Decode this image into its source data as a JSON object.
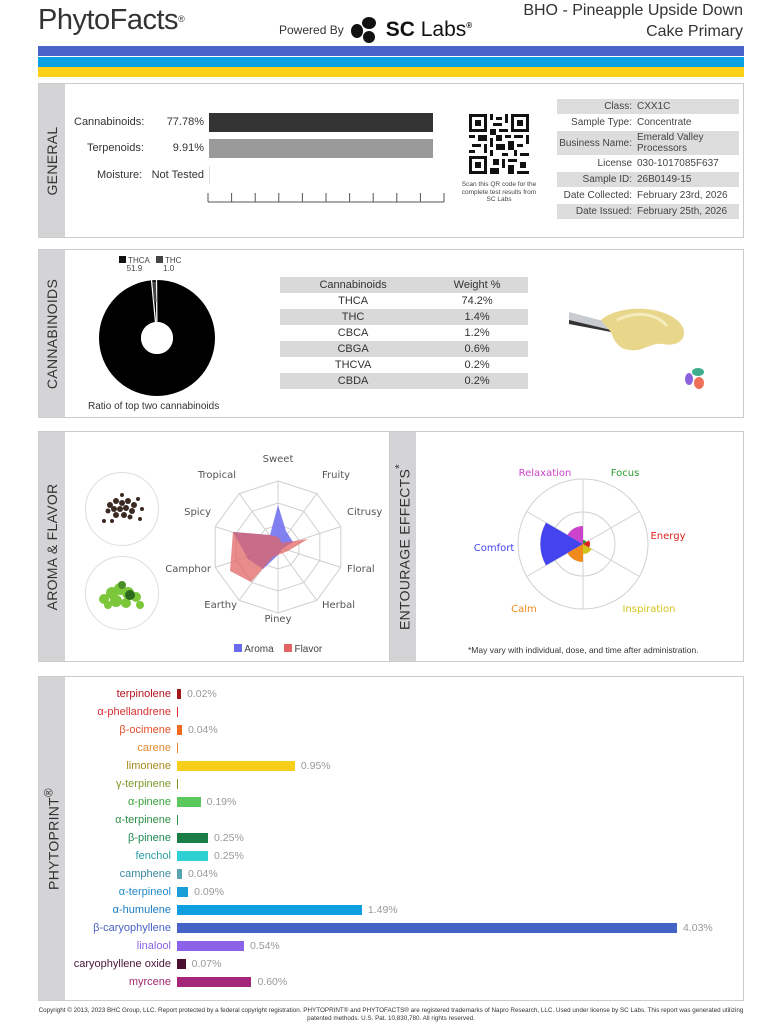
{
  "header": {
    "logo": "PhytoFacts",
    "logo_mark": "®",
    "powered_by": "Powered By",
    "partner_bold": "SC",
    "partner_rest": "Labs",
    "partner_mark": "®",
    "product_title_line1": "BHO - Pineapple Upside Down",
    "product_title_line2": "Cake Primary",
    "stripe_colors": [
      "#4a63c9",
      "#0aa0e3",
      "#fcd116"
    ]
  },
  "general": {
    "section_label": "GENERAL",
    "rows": [
      {
        "label": "Cannabinoids:",
        "value": "77.78%",
        "bar_pct": 100,
        "color": "#333333"
      },
      {
        "label": "Terpenoids:",
        "value": "9.91%",
        "bar_pct": 100,
        "color": "#9a9a9a"
      },
      {
        "label": "Moisture:",
        "value": "Not Tested",
        "bar_pct": 0,
        "color": "#cccccc"
      }
    ],
    "qr_caption": "Scan this QR code for the complete test results from SC Labs",
    "meta": [
      {
        "key": "Class:",
        "value": "CXX1C"
      },
      {
        "key": "Sample Type:",
        "value": "Concentrate"
      },
      {
        "key": "Business Name:",
        "value": "Emerald Valley Processors"
      },
      {
        "key": "License Number:",
        "value": "030-1017085F637"
      },
      {
        "key": "Sample ID:",
        "value": "26B0149-15"
      },
      {
        "key": "Date Collected:",
        "value": "February 23rd, 2026"
      },
      {
        "key": "Date Issued:",
        "value": "February 25th, 2026"
      }
    ]
  },
  "cannabinoids": {
    "section_label": "CANNABINOIDS",
    "donut_legend": [
      {
        "name": "THCA",
        "value": "51.9"
      },
      {
        "name": "THC",
        "value": "1.0"
      }
    ],
    "donut_caption": "Ratio of top two cannabinoids",
    "table_headers": [
      "Cannabinoids",
      "Weight %"
    ],
    "table_rows": [
      [
        "THCA",
        "74.2%"
      ],
      [
        "THC",
        "1.4%"
      ],
      [
        "CBCA",
        "1.2%"
      ],
      [
        "CBGA",
        "0.6%"
      ],
      [
        "THCVA",
        "0.2%"
      ],
      [
        "CBDA",
        "0.2%"
      ]
    ]
  },
  "aroma": {
    "section_label": "AROMA & FLAVOR",
    "axes": [
      "Sweet",
      "Fruity",
      "Citrusy",
      "Floral",
      "Herbal",
      "Piney",
      "Earthy",
      "Camphor",
      "Spicy",
      "Tropical"
    ],
    "legend": [
      {
        "name": "Aroma",
        "color": "#6b6bee"
      },
      {
        "name": "Flavor",
        "color": "#e06666"
      }
    ]
  },
  "entourage": {
    "section_label": "ENTOURAGE EFFECTS",
    "section_mark": "*",
    "labels": [
      {
        "name": "Relaxation",
        "color": "#cc44cc"
      },
      {
        "name": "Focus",
        "color": "#2e9a2e"
      },
      {
        "name": "Energy",
        "color": "#dd2222"
      },
      {
        "name": "Inspiration",
        "color": "#d4c41a"
      },
      {
        "name": "Calm",
        "color": "#f08a1c"
      },
      {
        "name": "Comfort",
        "color": "#4444ee"
      }
    ],
    "note": "*May vary with individual, dose, and time after administration."
  },
  "phytoprint": {
    "section_label": "PHYTOPRINT",
    "section_mark": "®",
    "terpenes": [
      {
        "name": "terpinolene",
        "value": "0.02%",
        "pct": 0.02,
        "color": "#a01818",
        "label_color": "#b3121e"
      },
      {
        "name": "α-phellandrene",
        "value": "",
        "pct": 0.0,
        "color": "#e04040",
        "label_color": "#d83030"
      },
      {
        "name": "β-ocimene",
        "value": "0.04%",
        "pct": 0.04,
        "color": "#f06a20",
        "label_color": "#e0502a"
      },
      {
        "name": "carene",
        "value": "",
        "pct": 0.0,
        "color": "#f0a040",
        "label_color": "#e08a30"
      },
      {
        "name": "limonene",
        "value": "0.95%",
        "pct": 0.95,
        "color": "#f7cf1a",
        "label_color": "#a88a1a"
      },
      {
        "name": "γ-terpinene",
        "value": "",
        "pct": 0.0,
        "color": "#a0b050",
        "label_color": "#7e9a2a"
      },
      {
        "name": "α-pinene",
        "value": "0.19%",
        "pct": 0.19,
        "color": "#5ac85a",
        "label_color": "#3aa03a"
      },
      {
        "name": "α-terpinene",
        "value": "",
        "pct": 0.0,
        "color": "#30a050",
        "label_color": "#2e8e46"
      },
      {
        "name": "β-pinene",
        "value": "0.25%",
        "pct": 0.25,
        "color": "#1a7e46",
        "label_color": "#1e8a52"
      },
      {
        "name": "fenchol",
        "value": "0.25%",
        "pct": 0.25,
        "color": "#2ed0d4",
        "label_color": "#2a9ea6"
      },
      {
        "name": "camphene",
        "value": "0.04%",
        "pct": 0.04,
        "color": "#5aa6b0",
        "label_color": "#3a88a0"
      },
      {
        "name": "α-terpineol",
        "value": "0.09%",
        "pct": 0.09,
        "color": "#1a9ed8",
        "label_color": "#2288c8"
      },
      {
        "name": "α-humulene",
        "value": "1.49%",
        "pct": 1.49,
        "color": "#0f9fe0",
        "label_color": "#1a7cc4"
      },
      {
        "name": "β-caryophyllene",
        "value": "4.03%",
        "pct": 4.03,
        "color": "#4562c6",
        "label_color": "#4a62c6"
      },
      {
        "name": "linalool",
        "value": "0.54%",
        "pct": 0.54,
        "color": "#8c63e8",
        "label_color": "#8a62e0"
      },
      {
        "name": "caryophyllene oxide",
        "value": "0.07%",
        "pct": 0.07,
        "color": "#4a0f30",
        "label_color": "#4a1438"
      },
      {
        "name": "myrcene",
        "value": "0.60%",
        "pct": 0.6,
        "color": "#a32678",
        "label_color": "#a02870"
      }
    ]
  },
  "footer": {
    "text": "Copyright © 2013, 2023 BHC Group, LLC. Report protected by a federal copyright registration. PHYTOPRINT® and PHYTOFACTS® are registered trademarks of Napro Research, LLC. Used under license by SC Labs. This report was generated utilizing patented methods. U.S. Pat. 10,830,780. All rights reserved."
  },
  "chart_data": [
    {
      "type": "bar",
      "title": "General",
      "categories": [
        "Cannabinoids",
        "Terpenoids",
        "Moisture"
      ],
      "values": [
        77.78,
        9.91,
        null
      ],
      "ylabel": "%"
    },
    {
      "type": "pie",
      "title": "Ratio of top two cannabinoids",
      "categories": [
        "THCA",
        "THC"
      ],
      "values": [
        51.9,
        1.0
      ]
    },
    {
      "type": "table",
      "title": "Cannabinoids",
      "categories": [
        "THCA",
        "THC",
        "CBCA",
        "CBGA",
        "THCVA",
        "CBDA"
      ],
      "values": [
        74.2,
        1.4,
        1.2,
        0.6,
        0.2,
        0.2
      ],
      "ylabel": "Weight %"
    },
    {
      "type": "bar",
      "title": "Phytoprint",
      "categories": [
        "terpinolene",
        "α-phellandrene",
        "β-ocimene",
        "carene",
        "limonene",
        "γ-terpinene",
        "α-pinene",
        "α-terpinene",
        "β-pinene",
        "fenchol",
        "camphene",
        "α-terpineol",
        "α-humulene",
        "β-caryophyllene",
        "linalool",
        "caryophyllene oxide",
        "myrcene"
      ],
      "values": [
        0.02,
        0,
        0.04,
        0,
        0.95,
        0,
        0.19,
        0,
        0.25,
        0.25,
        0.04,
        0.09,
        1.49,
        4.03,
        0.54,
        0.07,
        0.6
      ],
      "ylabel": "%"
    }
  ]
}
